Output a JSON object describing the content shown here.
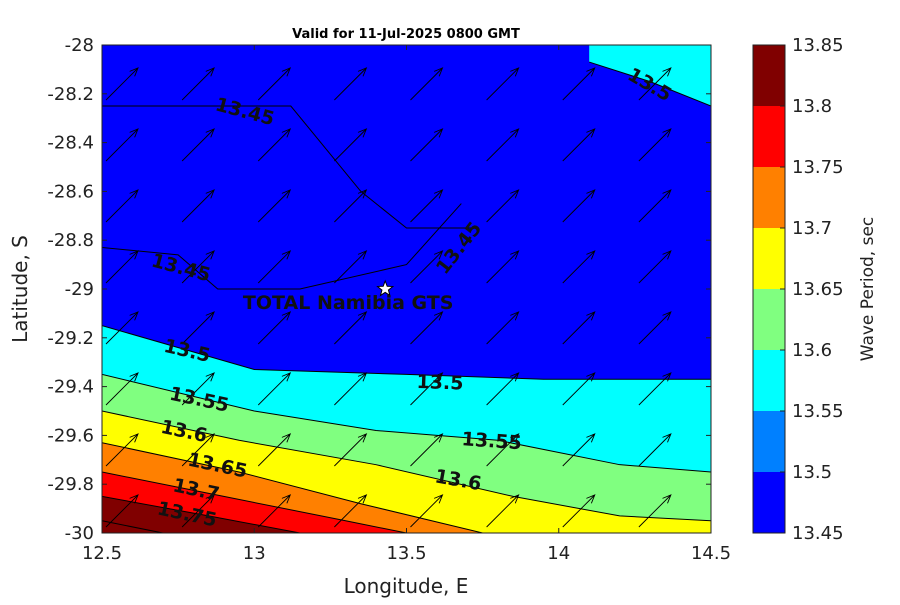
{
  "chart_data": {
    "type": "contour",
    "title": "Valid for 11-Jul-2025 0800 GMT",
    "xlabel": "Longitude, E",
    "ylabel": "Latitude, S",
    "xlim": [
      12.5,
      14.5
    ],
    "ylim": [
      -30,
      -28
    ],
    "x_ticks": [
      "12.5",
      "13",
      "13.5",
      "14",
      "14.5"
    ],
    "y_ticks": [
      "-28",
      "-28.2",
      "-28.4",
      "-28.6",
      "-28.8",
      "-29",
      "-29.2",
      "-29.4",
      "-29.6",
      "-29.8",
      "-30"
    ],
    "colorbar": {
      "label": "Wave Period, sec",
      "ticks": [
        "13.45",
        "13.5",
        "13.55",
        "13.6",
        "13.65",
        "13.7",
        "13.75",
        "13.8",
        "13.85"
      ],
      "bands": [
        {
          "range": [
            13.45,
            13.5
          ],
          "color": "#0000ff"
        },
        {
          "range": [
            13.5,
            13.55
          ],
          "color": "#0080ff"
        },
        {
          "range": [
            13.55,
            13.6
          ],
          "color": "#00ffff"
        },
        {
          "range": [
            13.6,
            13.65
          ],
          "color": "#80ff80"
        },
        {
          "range": [
            13.65,
            13.7
          ],
          "color": "#ffff00"
        },
        {
          "range": [
            13.7,
            13.75
          ],
          "color": "#ff8000"
        },
        {
          "range": [
            13.75,
            13.8
          ],
          "color": "#ff0000"
        },
        {
          "range": [
            13.8,
            13.85
          ],
          "color": "#800000"
        }
      ]
    },
    "contour_levels": [
      {
        "level": 13.45,
        "lines": [
          [
            [
              12.5,
              -28.25
            ],
            [
              13.12,
              -28.25
            ],
            [
              13.35,
              -28.6
            ],
            [
              13.5,
              -28.75
            ],
            [
              13.72,
              -28.75
            ]
          ],
          [
            [
              12.5,
              -28.83
            ],
            [
              12.75,
              -28.86
            ],
            [
              12.88,
              -29.0
            ],
            [
              13.15,
              -29.0
            ],
            [
              13.5,
              -28.9
            ],
            [
              13.68,
              -28.65
            ]
          ]
        ],
        "labels": [
          {
            "text": "13.45",
            "lon": 12.97,
            "lat": -28.27,
            "angle": 15
          },
          {
            "text": "13.45",
            "lon": 12.76,
            "lat": -28.91,
            "angle": 15
          },
          {
            "text": "13.45",
            "lon": 13.67,
            "lat": -28.83,
            "angle": -52
          }
        ]
      },
      {
        "level": 13.5,
        "lines": [
          [
            [
              12.5,
              -29.15
            ],
            [
              13.0,
              -29.33
            ],
            [
              13.5,
              -29.35
            ],
            [
              13.95,
              -29.37
            ],
            [
              14.5,
              -29.37
            ]
          ],
          [
            [
              14.1,
              -28.07
            ],
            [
              14.3,
              -28.15
            ],
            [
              14.5,
              -28.25
            ]
          ]
        ],
        "labels": [
          {
            "text": "13.5",
            "lon": 12.78,
            "lat": -29.25,
            "angle": 13
          },
          {
            "text": "13.5",
            "lon": 13.61,
            "lat": -29.38,
            "angle": 2
          },
          {
            "text": "13.5",
            "lon": 14.3,
            "lat": -28.16,
            "angle": 30
          }
        ]
      },
      {
        "level": 13.55,
        "lines": [
          [
            [
              12.5,
              -29.35
            ],
            [
              13.0,
              -29.5
            ],
            [
              13.4,
              -29.58
            ],
            [
              13.8,
              -29.62
            ],
            [
              14.2,
              -29.72
            ],
            [
              14.5,
              -29.75
            ]
          ]
        ],
        "labels": [
          {
            "text": "13.55",
            "lon": 12.82,
            "lat": -29.45,
            "angle": 12
          },
          {
            "text": "13.55",
            "lon": 13.78,
            "lat": -29.62,
            "angle": 4
          }
        ]
      },
      {
        "level": 13.6,
        "lines": [
          [
            [
              12.5,
              -29.5
            ],
            [
              12.95,
              -29.62
            ],
            [
              13.4,
              -29.72
            ],
            [
              13.85,
              -29.85
            ],
            [
              14.2,
              -29.93
            ],
            [
              14.5,
              -29.95
            ]
          ]
        ],
        "labels": [
          {
            "text": "13.6",
            "lon": 12.77,
            "lat": -29.58,
            "angle": 12
          },
          {
            "text": "13.6",
            "lon": 13.67,
            "lat": -29.78,
            "angle": 10
          }
        ]
      },
      {
        "level": 13.65,
        "lines": [
          [
            [
              12.5,
              -29.63
            ],
            [
              12.95,
              -29.75
            ],
            [
              13.35,
              -29.88
            ],
            [
              13.75,
              -30.0
            ]
          ]
        ],
        "labels": [
          {
            "text": "13.65",
            "lon": 12.88,
            "lat": -29.72,
            "angle": 12
          }
        ]
      },
      {
        "level": 13.7,
        "lines": [
          [
            [
              12.5,
              -29.75
            ],
            [
              12.9,
              -29.85
            ],
            [
              13.3,
              -29.95
            ],
            [
              13.5,
              -30.0
            ]
          ]
        ],
        "labels": [
          {
            "text": "13.7",
            "lon": 12.81,
            "lat": -29.82,
            "angle": 12
          }
        ]
      },
      {
        "level": 13.75,
        "lines": [
          [
            [
              12.5,
              -29.85
            ],
            [
              12.85,
              -29.93
            ],
            [
              13.15,
              -30.0
            ]
          ]
        ],
        "labels": [
          {
            "text": "13.75",
            "lon": 12.78,
            "lat": -29.92,
            "angle": 12
          }
        ]
      },
      {
        "level": 13.8,
        "lines": [
          [
            [
              12.5,
              -29.95
            ],
            [
              12.7,
              -30.0
            ]
          ]
        ],
        "labels": []
      }
    ],
    "site": {
      "name": "TOTAL Namibia GTS",
      "lon": 13.43,
      "lat": -29.0,
      "marker": "star"
    },
    "vector_field": {
      "x": [
        12.5,
        12.75,
        13.0,
        13.25,
        13.5,
        13.75,
        14.0,
        14.25
      ],
      "y": [
        -28.0,
        -28.25,
        -28.5,
        -28.75,
        -29.0,
        -29.25,
        -29.5,
        -29.75,
        -30.0
      ],
      "direction": "north-east"
    }
  }
}
